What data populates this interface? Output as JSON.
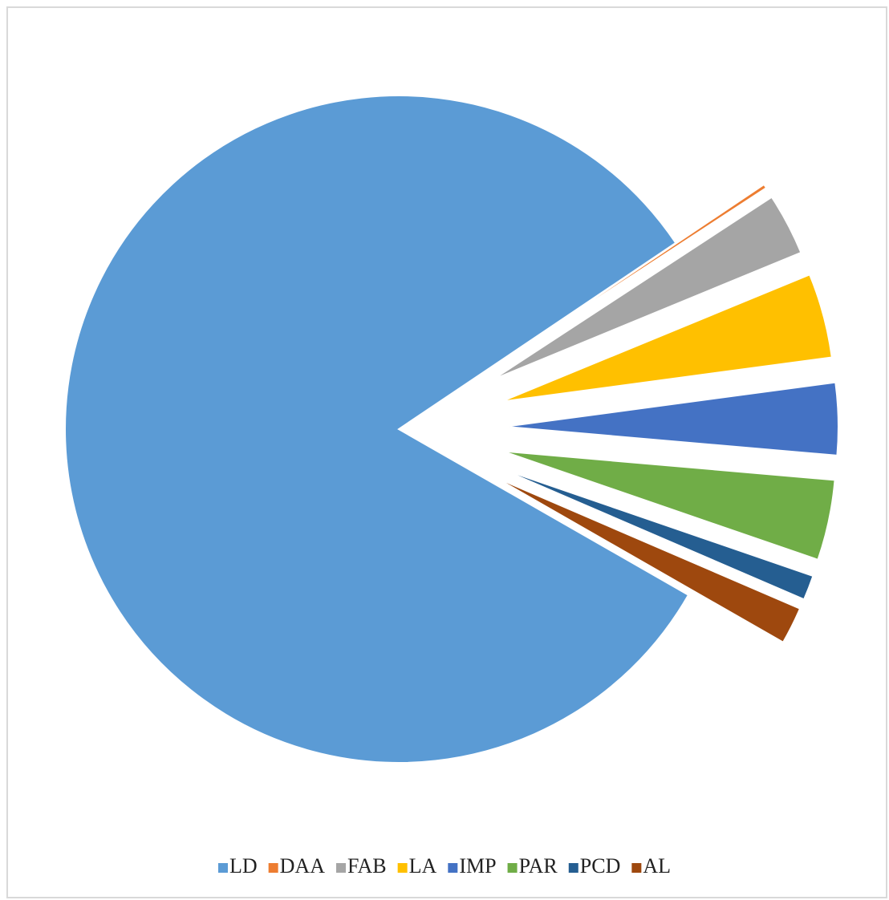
{
  "chart_data": {
    "type": "pie",
    "categories": [
      "LD",
      "DAA",
      "FAB",
      "LA",
      "IMP",
      "PAR",
      "PCD",
      "AL"
    ],
    "values": [
      82.3,
      0.2,
      3.0,
      4.1,
      3.5,
      3.9,
      1.2,
      1.8
    ],
    "colors": [
      "#5b9bd5",
      "#ed7d31",
      "#a5a5a5",
      "#ffc000",
      "#4472c4",
      "#70ad47",
      "#255e91",
      "#9e480e"
    ],
    "legend": "bottom"
  }
}
